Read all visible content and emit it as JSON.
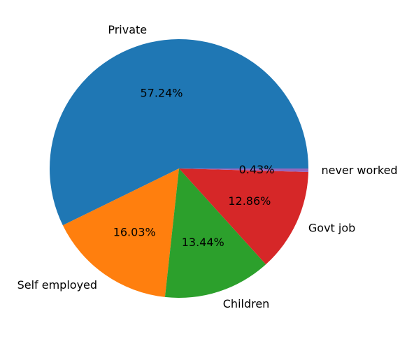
{
  "chart_data": {
    "type": "pie",
    "title": "",
    "start_angle": 0,
    "direction": "counterclockwise",
    "slices": [
      {
        "label": "Private",
        "value": 57.24,
        "pct_label": "57.24%",
        "color": "#1f77b4"
      },
      {
        "label": "Self employed",
        "value": 16.03,
        "pct_label": "16.03%",
        "color": "#ff7f0e"
      },
      {
        "label": "Children",
        "value": 13.44,
        "pct_label": "13.44%",
        "color": "#2ca02c"
      },
      {
        "label": "Govt job",
        "value": 12.86,
        "pct_label": "12.86%",
        "color": "#d62728"
      },
      {
        "label": "never worked",
        "value": 0.43,
        "pct_label": "0.43%",
        "color": "#9467bd"
      }
    ]
  }
}
